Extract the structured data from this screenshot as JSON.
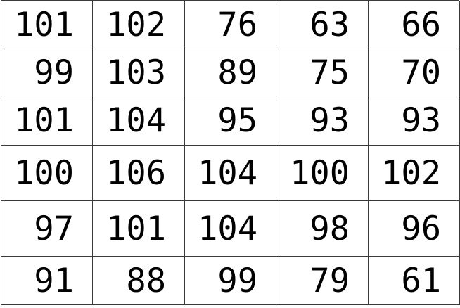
{
  "table": {
    "rows": [
      [
        "101",
        "102",
        "76",
        "63",
        "66"
      ],
      [
        "99",
        "103",
        "89",
        "75",
        "70"
      ],
      [
        "101",
        "104",
        "95",
        "93",
        "93"
      ],
      [
        "100",
        "106",
        "104",
        "100",
        "102"
      ],
      [
        "97",
        "101",
        "104",
        "98",
        "96"
      ],
      [
        "91",
        "88",
        "99",
        "79",
        "61"
      ]
    ]
  }
}
